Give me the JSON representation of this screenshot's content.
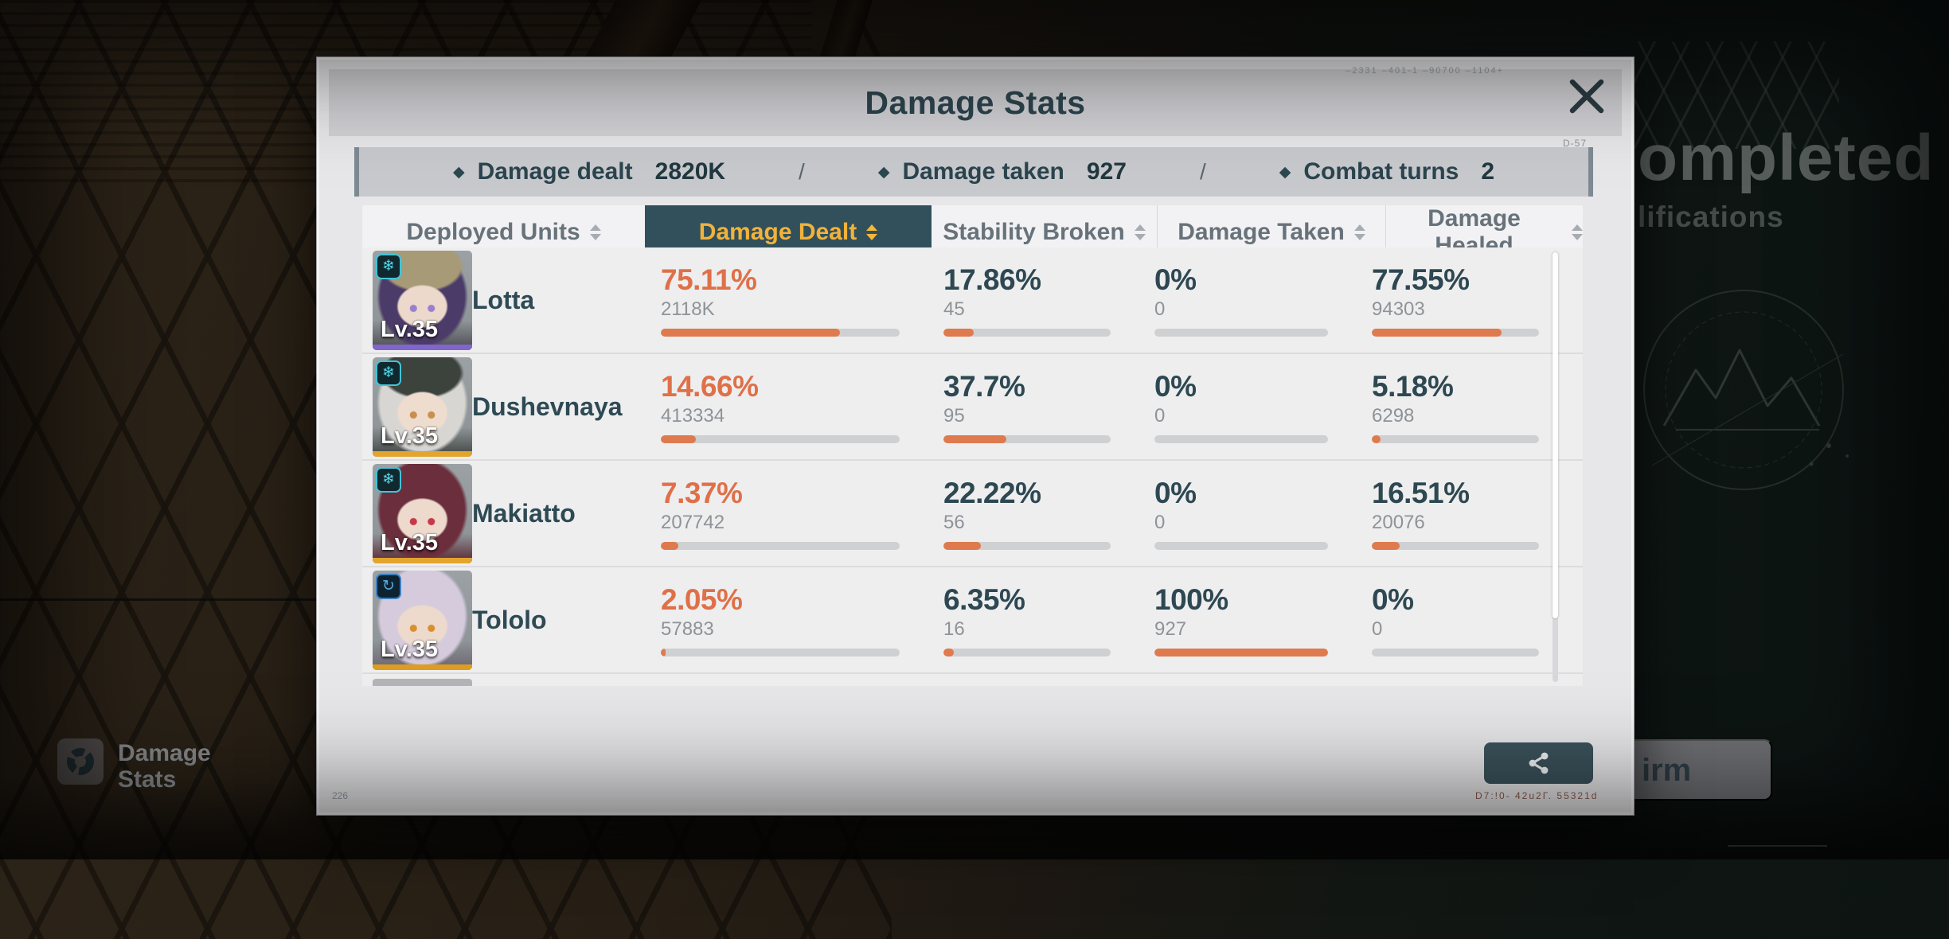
{
  "background": {
    "completed_fragment": "ompleted",
    "qualifications_fragment": "lifications",
    "hud_label_line1": "Damage",
    "hud_label_line2": "Stats",
    "confirm_visible_label": "irm"
  },
  "modal": {
    "title": "Damage Stats",
    "decor": {
      "top_right": "–2331  –401-1  –90700  –1104+",
      "summary_right": "D-57",
      "bottom_left": "226",
      "bottom_right": "D7:!0-  42u2Г.  55321d"
    },
    "summary": {
      "bullet": "◆",
      "separator": "/",
      "damage_dealt": {
        "label": "Damage dealt",
        "value": "2820K"
      },
      "damage_taken": {
        "label": "Damage taken",
        "value": "927"
      },
      "combat_turns": {
        "label": "Combat turns",
        "value": "2"
      }
    },
    "columns": {
      "deployed_units": "Deployed Units",
      "damage_dealt": "Damage Dealt",
      "stability_broken": "Stability Broken",
      "damage_taken": "Damage Taken",
      "damage_healed": "Damage Healed"
    },
    "rows": [
      {
        "name": "Lotta",
        "level": "Lv.35",
        "badge_glyph": "❄",
        "art": {
          "hair": "#4b3b68",
          "hat": "#a79a77",
          "skin": "#ecd9cc",
          "eye": "#9a7fd0",
          "body": "#4a4a50",
          "strip": "#8165cc",
          "badge_bg": "#11282e",
          "badge_border": "#43c4d8",
          "badge_color": "#52d8ea"
        },
        "damage_dealt": {
          "percent": "75.11%",
          "value": "2118K",
          "fill": 75.11
        },
        "stability_broken": {
          "percent": "17.86%",
          "value": "45",
          "fill": 17.86
        },
        "damage_taken": {
          "percent": "0%",
          "value": "0",
          "fill": 0
        },
        "damage_healed": {
          "percent": "77.55%",
          "value": "94303",
          "fill": 77.55
        }
      },
      {
        "name": "Dushevnaya",
        "level": "Lv.35",
        "badge_glyph": "❄",
        "art": {
          "hair": "#d8d6d2",
          "hat": "#3c423c",
          "skin": "#eedccf",
          "eye": "#c7904c",
          "body": "#3f443f",
          "strip": "#e3a52d",
          "badge_bg": "#11282e",
          "badge_border": "#43c4d8",
          "badge_color": "#52d8ea"
        },
        "damage_dealt": {
          "percent": "14.66%",
          "value": "413334",
          "fill": 14.66
        },
        "stability_broken": {
          "percent": "37.7%",
          "value": "95",
          "fill": 37.7
        },
        "damage_taken": {
          "percent": "0%",
          "value": "0",
          "fill": 0
        },
        "damage_healed": {
          "percent": "5.18%",
          "value": "6298",
          "fill": 5.18
        }
      },
      {
        "name": "Makiatto",
        "level": "Lv.35",
        "badge_glyph": "❄",
        "art": {
          "hair": "#6b2e3c",
          "hat": "transparent",
          "skin": "#eedacd",
          "eye": "#c43a48",
          "body": "#57232e",
          "strip": "#e3a52d",
          "badge_bg": "#11282e",
          "badge_border": "#43c4d8",
          "badge_color": "#52d8ea"
        },
        "damage_dealt": {
          "percent": "7.37%",
          "value": "207742",
          "fill": 7.37
        },
        "stability_broken": {
          "percent": "22.22%",
          "value": "56",
          "fill": 22.22
        },
        "damage_taken": {
          "percent": "0%",
          "value": "0",
          "fill": 0
        },
        "damage_healed": {
          "percent": "16.51%",
          "value": "20076",
          "fill": 16.51
        }
      },
      {
        "name": "Tololo",
        "level": "Lv.35",
        "badge_glyph": "↻",
        "art": {
          "hair": "#d5cbdc",
          "hat": "transparent",
          "skin": "#eedacd",
          "eye": "#d98f2e",
          "body": "#6b6470",
          "strip": "#dd9d20",
          "badge_bg": "#0e2331",
          "badge_border": "#3b80c0",
          "badge_color": "#55aadf"
        },
        "damage_dealt": {
          "percent": "2.05%",
          "value": "57883",
          "fill": 2.05
        },
        "stability_broken": {
          "percent": "6.35%",
          "value": "16",
          "fill": 6.35
        },
        "damage_taken": {
          "percent": "100%",
          "value": "927",
          "fill": 100
        },
        "damage_healed": {
          "percent": "0%",
          "value": "0",
          "fill": 0
        }
      }
    ]
  },
  "colors": {
    "accent_orange": "#df7048",
    "selected_tab_bg": "#31505c",
    "selected_tab_text": "#f2b23a",
    "stat_text": "#2e4852"
  }
}
